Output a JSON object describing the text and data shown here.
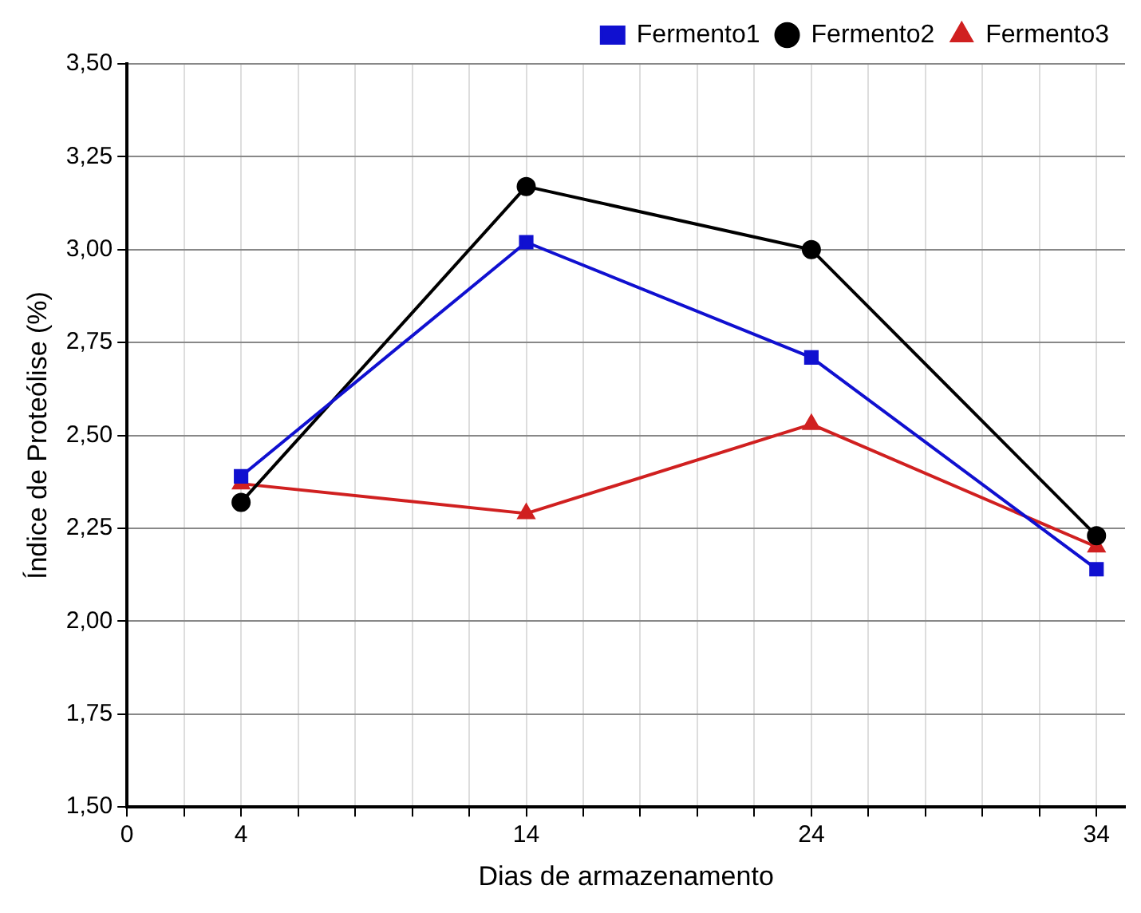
{
  "chart_data": {
    "type": "line",
    "xlabel": "Dias de armazenamento",
    "ylabel": "Índice de Proteólise (%)",
    "x": [
      4,
      14,
      24,
      34
    ],
    "series": [
      {
        "name": "Fermento1",
        "color": "#1010d0",
        "marker": "square",
        "values": [
          2.39,
          3.02,
          2.71,
          2.14
        ]
      },
      {
        "name": "Fermento2",
        "color": "#000000",
        "marker": "circle",
        "values": [
          2.32,
          3.17,
          3.0,
          2.23
        ]
      },
      {
        "name": "Fermento3",
        "color": "#d02020",
        "marker": "triangle",
        "values": [
          2.37,
          2.29,
          2.53,
          2.2
        ]
      }
    ],
    "xlim": [
      0,
      35
    ],
    "xticks": [
      0,
      {
        "value": 2,
        "label": null
      },
      4,
      {
        "value": 6,
        "label": null
      },
      {
        "value": 8,
        "label": null
      },
      {
        "value": 10,
        "label": null
      },
      {
        "value": 12,
        "label": null
      },
      14,
      {
        "value": 16,
        "label": null
      },
      {
        "value": 18,
        "label": null
      },
      {
        "value": 20,
        "label": null
      },
      {
        "value": 22,
        "label": null
      },
      24,
      {
        "value": 26,
        "label": null
      },
      {
        "value": 28,
        "label": null
      },
      {
        "value": 30,
        "label": null
      },
      {
        "value": 32,
        "label": null
      },
      34
    ],
    "ylim": [
      1.5,
      3.5
    ],
    "yticks": [
      {
        "value": 1.5,
        "label": "1,50"
      },
      {
        "value": 1.75,
        "label": "1,75"
      },
      {
        "value": 2,
        "label": "2,00"
      },
      {
        "value": 2.25,
        "label": "2,25"
      },
      {
        "value": 2.5,
        "label": "2,50"
      },
      {
        "value": 2.75,
        "label": "2,75"
      },
      {
        "value": 3,
        "label": "3,00"
      },
      {
        "value": 3.25,
        "label": "3,25"
      },
      {
        "value": 3.5,
        "label": "3,50"
      }
    ],
    "grid": true,
    "legend": "top right",
    "line_style": "solid"
  }
}
